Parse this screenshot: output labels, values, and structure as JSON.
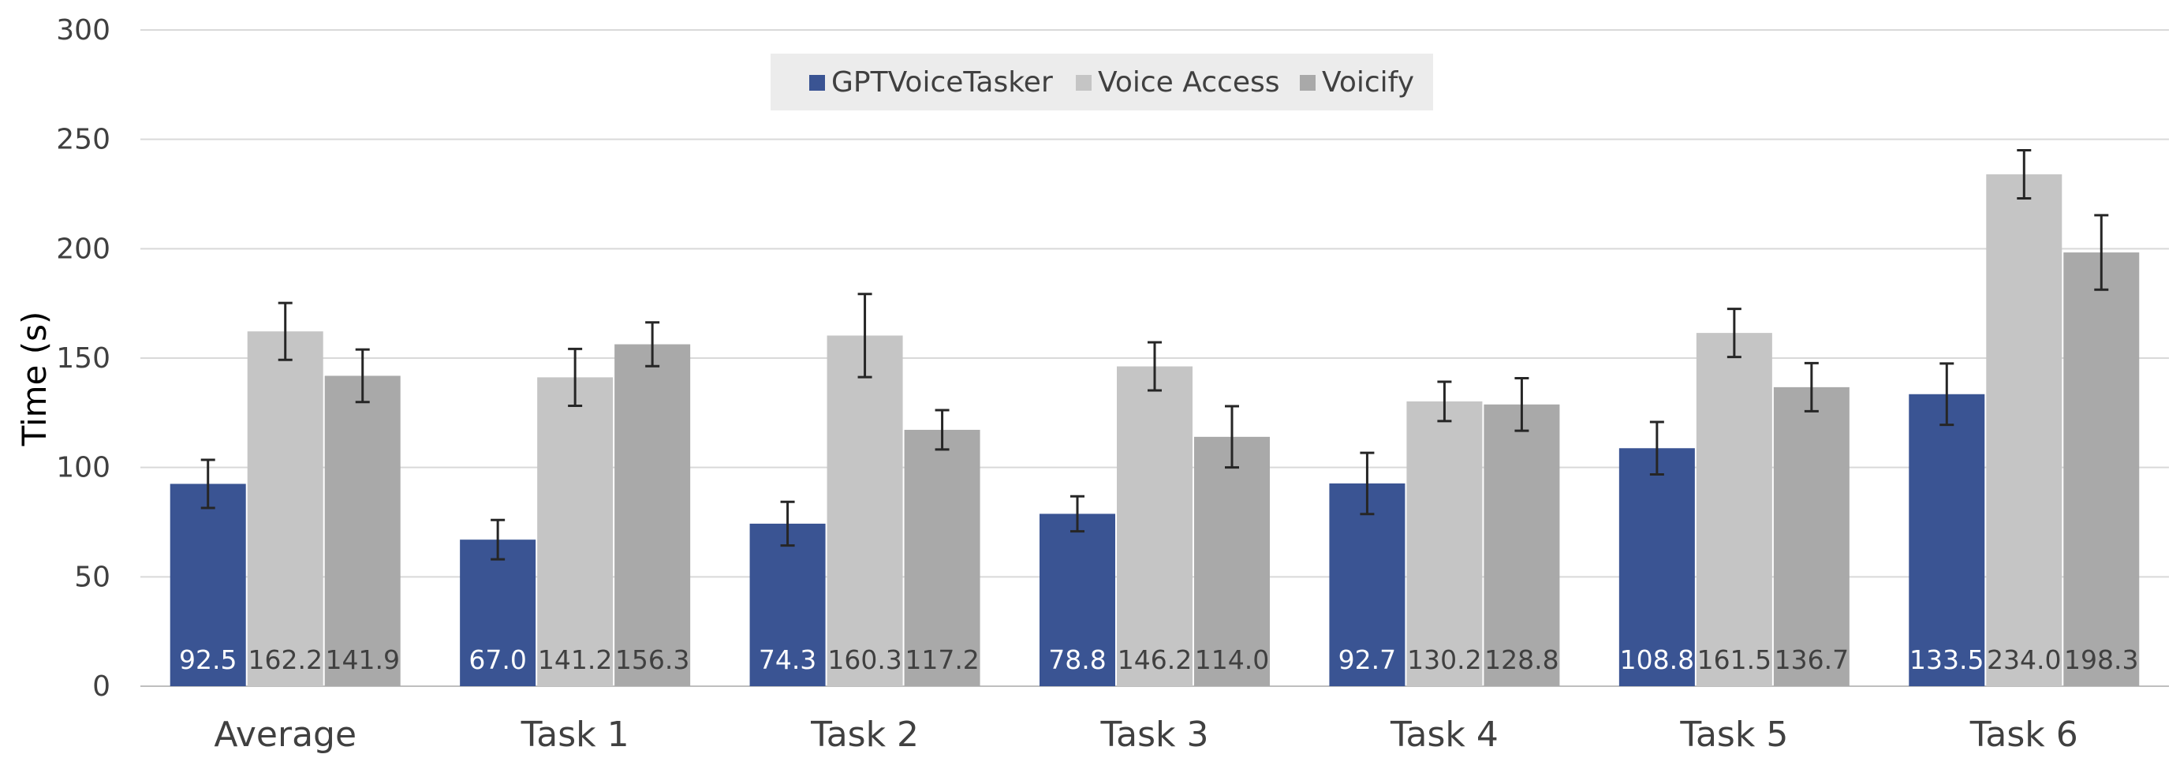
{
  "chart_data": {
    "type": "bar",
    "ylabel": "Time (s)",
    "ylim": [
      0,
      300
    ],
    "yticks": [
      "0",
      "50",
      "100",
      "150",
      "200",
      "250",
      "300"
    ],
    "grid": true,
    "legend_position": "top-center",
    "categories": [
      "Average",
      "Task 1",
      "Task 2",
      "Task 3",
      "Task 4",
      "Task 5",
      "Task 6"
    ],
    "series": [
      {
        "name": "GPTVoiceTasker",
        "color": "#3A5493",
        "label_color": "#ffffff",
        "values": [
          92.5,
          67.0,
          74.3,
          78.8,
          92.7,
          108.8,
          133.5
        ],
        "labels": [
          "92.5",
          "67.0",
          "74.3",
          "78.8",
          "92.7",
          "108.8",
          "133.5"
        ],
        "error": [
          11,
          9,
          10,
          8,
          14,
          12,
          14
        ]
      },
      {
        "name": "Voice Access",
        "color": "#C5C5C5",
        "label_color": "#404040",
        "values": [
          162.2,
          141.2,
          160.3,
          146.2,
          130.2,
          161.5,
          234.0
        ],
        "labels": [
          "162.2",
          "141.2",
          "160.3",
          "146.2",
          "130.2",
          "161.5",
          "234.0"
        ],
        "error": [
          13,
          13,
          19,
          11,
          9,
          11,
          11
        ]
      },
      {
        "name": "Voicify",
        "color": "#A9A9A9",
        "label_color": "#404040",
        "values": [
          141.9,
          156.3,
          117.2,
          114.0,
          128.8,
          136.7,
          198.3
        ],
        "labels": [
          "141.9",
          "156.3",
          "117.2",
          "114.0",
          "128.8",
          "136.7",
          "198.3"
        ],
        "error": [
          12,
          10,
          9,
          14,
          12,
          11,
          17
        ]
      }
    ]
  }
}
